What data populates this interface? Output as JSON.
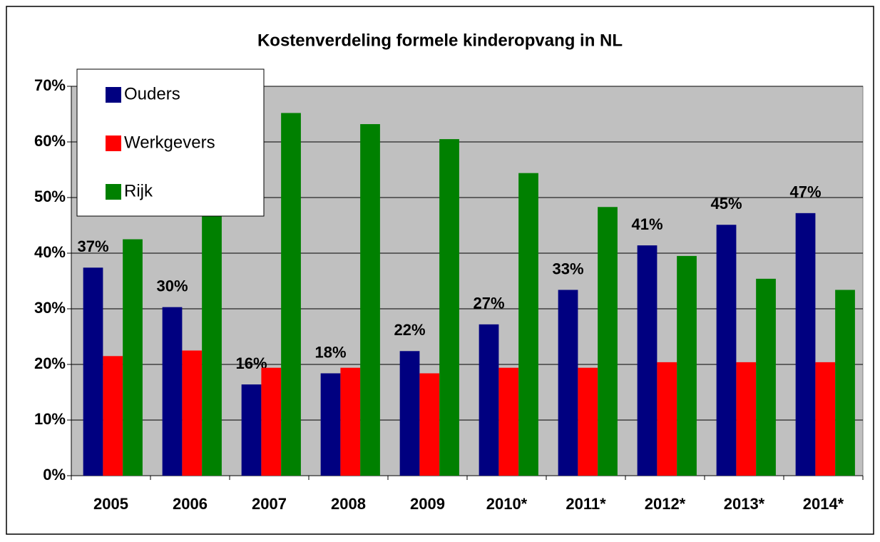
{
  "chart_data": {
    "type": "bar",
    "title": "Kostenverdeling formele kinderopvang in NL",
    "categories": [
      "2005",
      "2006",
      "2007",
      "2008",
      "2009",
      "2010*",
      "2011*",
      "2012*",
      "2013*",
      "2014*"
    ],
    "series": [
      {
        "name": "Ouders",
        "color": "#000080",
        "values": [
          37.4,
          30.3,
          16.4,
          18.4,
          22.4,
          27.2,
          33.4,
          41.4,
          45.1,
          47.2
        ],
        "value_labels": [
          "37%",
          "30%",
          "16%",
          "18%",
          "22%",
          "27%",
          "33%",
          "41%",
          "45%",
          "47%"
        ]
      },
      {
        "name": "Werkgevers",
        "color": "#ff0000",
        "values": [
          21.5,
          22.5,
          19.4,
          19.4,
          18.4,
          19.4,
          19.4,
          20.4,
          20.4,
          20.4
        ]
      },
      {
        "name": "Rijk",
        "color": "#008000",
        "values": [
          42.5,
          48,
          65.2,
          63.2,
          60.5,
          54.4,
          48.3,
          39.5,
          35.4,
          33.4
        ]
      }
    ],
    "ylim": [
      0,
      70
    ],
    "yticks": [
      {
        "value": 0,
        "label": "0%"
      },
      {
        "value": 10,
        "label": "10%"
      },
      {
        "value": 20,
        "label": "20%"
      },
      {
        "value": 30,
        "label": "30%"
      },
      {
        "value": 40,
        "label": "40%"
      },
      {
        "value": 50,
        "label": "50%"
      },
      {
        "value": 60,
        "label": "60%"
      },
      {
        "value": 70,
        "label": "70%"
      }
    ],
    "grid": true,
    "legend": "upper left"
  }
}
